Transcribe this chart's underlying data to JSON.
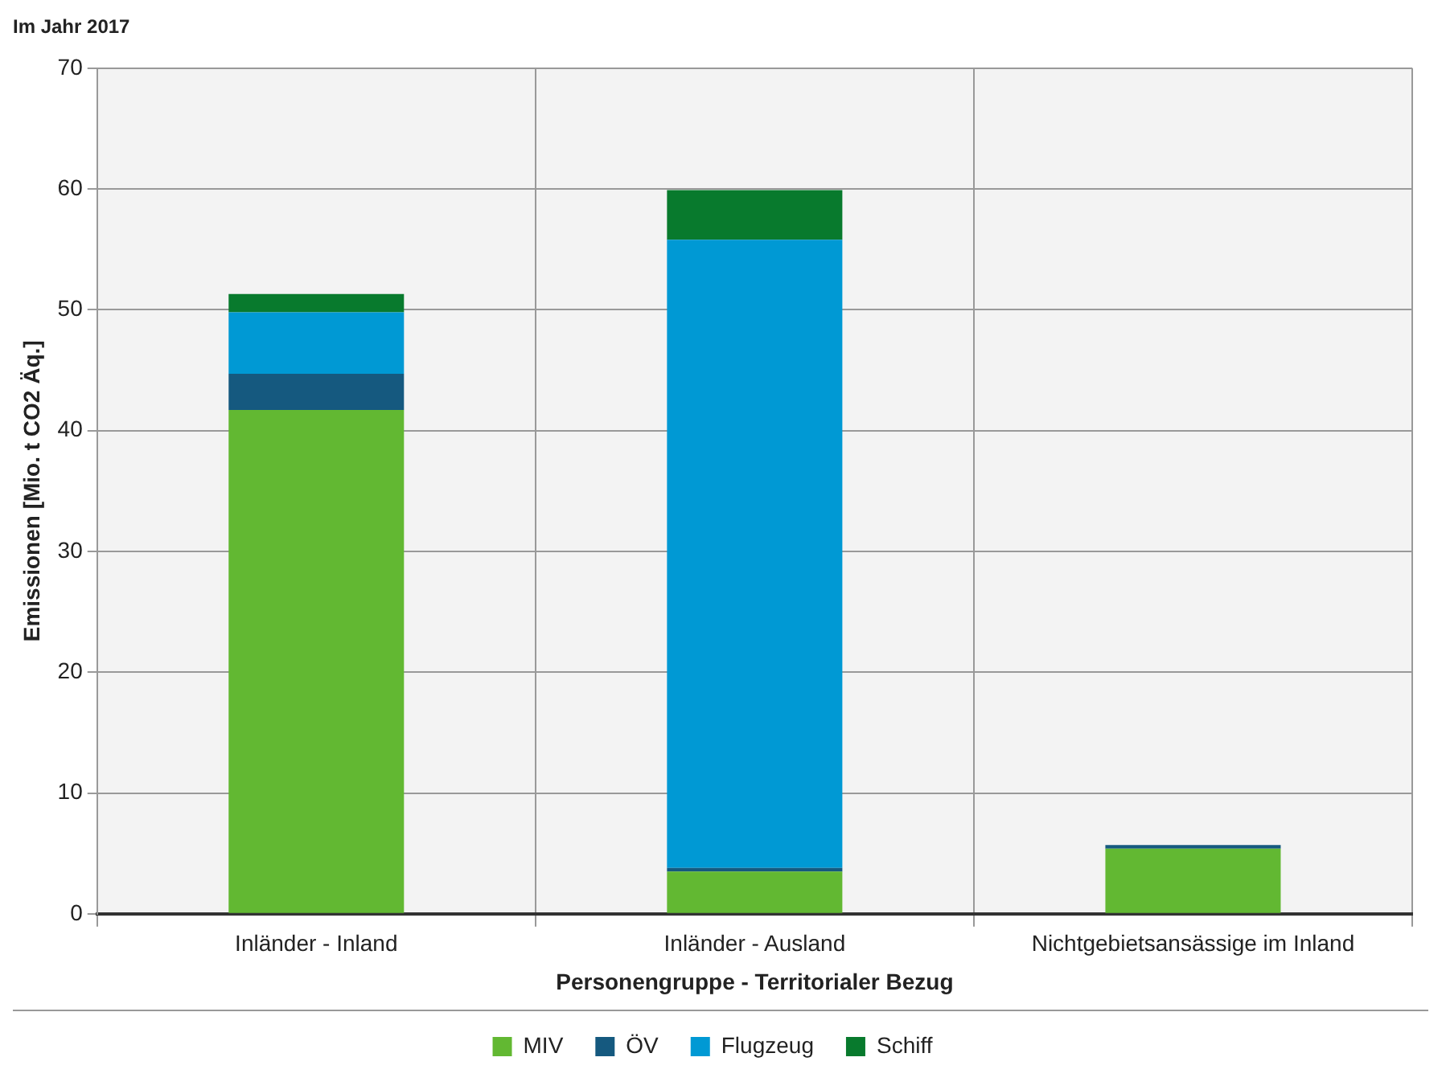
{
  "chart_data": {
    "type": "bar",
    "title": "Im Jahr 2017",
    "xlabel": "Personengruppe - Territorialer Bezug",
    "ylabel": "Emissionen [Mio. t CO2 Äq.]",
    "categories": [
      "Inländer - Inland",
      "Inländer - Ausland",
      "Nichtgebietsansässige im Inland"
    ],
    "series": [
      {
        "name": "MIV",
        "color": "#62b832",
        "values": [
          41.7,
          3.5,
          5.4
        ]
      },
      {
        "name": "ÖV",
        "color": "#15597f",
        "values": [
          3.0,
          0.3,
          0.3
        ]
      },
      {
        "name": "Flugzeug",
        "color": "#0099d4",
        "values": [
          5.1,
          52.0,
          0
        ]
      },
      {
        "name": "Schiff",
        "color": "#087a2d",
        "values": [
          1.5,
          4.1,
          0
        ]
      }
    ],
    "stacked": true,
    "ylim": [
      0,
      70
    ],
    "yticks": [
      0,
      10,
      20,
      30,
      40,
      50,
      60,
      70
    ],
    "grid": true,
    "legend": "bottom"
  }
}
